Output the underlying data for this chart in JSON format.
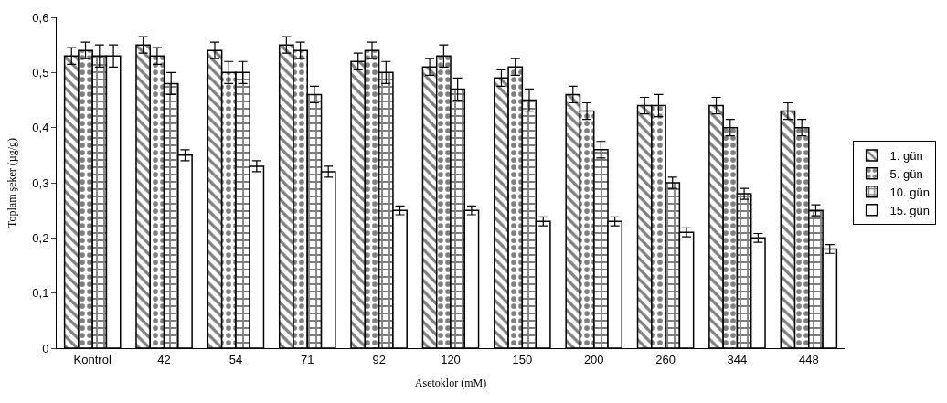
{
  "chart_data": {
    "type": "bar",
    "xlabel": "Asetoklor (mM)",
    "ylabel": "Toplam şeker (µg/g)",
    "categories": [
      "Kontrol",
      "42",
      "54",
      "71",
      "92",
      "120",
      "150",
      "200",
      "260",
      "344",
      "448"
    ],
    "series": [
      {
        "name": "1. gün",
        "color": "#000000",
        "values": [
          0.53,
          0.55,
          0.54,
          0.55,
          0.52,
          0.51,
          0.49,
          0.46,
          0.44,
          0.44,
          0.43
        ],
        "errors": [
          0.015,
          0.015,
          0.015,
          0.015,
          0.015,
          0.015,
          0.015,
          0.015,
          0.015,
          0.015,
          0.015
        ]
      },
      {
        "name": "5. gün",
        "color": "#000000",
        "values": [
          0.54,
          0.53,
          0.5,
          0.54,
          0.54,
          0.53,
          0.51,
          0.43,
          0.44,
          0.4,
          0.4
        ],
        "errors": [
          0.015,
          0.015,
          0.02,
          0.015,
          0.015,
          0.02,
          0.015,
          0.015,
          0.02,
          0.015,
          0.015
        ]
      },
      {
        "name": "10. gün",
        "color": "#000000",
        "values": [
          0.53,
          0.48,
          0.5,
          0.46,
          0.5,
          0.47,
          0.45,
          0.36,
          0.3,
          0.28,
          0.25
        ],
        "errors": [
          0.02,
          0.02,
          0.02,
          0.015,
          0.02,
          0.02,
          0.02,
          0.015,
          0.01,
          0.01,
          0.01
        ]
      },
      {
        "name": "15. gün",
        "color": "#000000",
        "values": [
          0.53,
          0.35,
          0.33,
          0.32,
          0.25,
          0.25,
          0.23,
          0.23,
          0.21,
          0.2,
          0.18
        ],
        "errors": [
          0.02,
          0.01,
          0.01,
          0.01,
          0.008,
          0.008,
          0.008,
          0.008,
          0.008,
          0.008,
          0.008
        ]
      }
    ],
    "ylim": [
      0,
      0.6
    ],
    "yticks": [
      0,
      {
        "value": 0.1,
        "label": "0,1"
      },
      {
        "value": 0.2,
        "label": "0,2"
      },
      {
        "value": 0.3,
        "label": "0,3"
      },
      {
        "value": 0.4,
        "label": "0,4"
      },
      {
        "value": 0.5,
        "label": "0,5"
      },
      {
        "value": 0.6,
        "label": "0,6"
      }
    ],
    "legend": "right"
  }
}
